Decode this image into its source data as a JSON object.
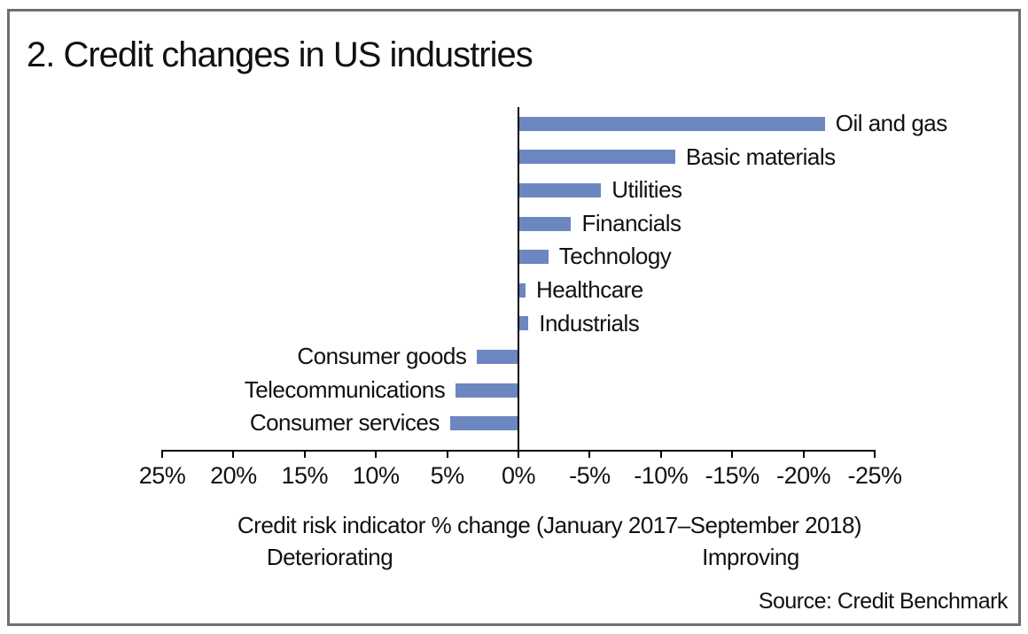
{
  "title": "2. Credit changes in US industries",
  "source": "Source: Credit Benchmark",
  "chart_data": {
    "type": "bar",
    "orientation": "horizontal",
    "title": "2. Credit changes in US industries",
    "categories": [
      "Oil and gas",
      "Basic materials",
      "Utilities",
      "Financials",
      "Technology",
      "Healthcare",
      "Industrials",
      "Consumer goods",
      "Telecommunications",
      "Consumer services"
    ],
    "values": [
      -21.5,
      -11.0,
      -5.8,
      -3.7,
      -2.1,
      -0.5,
      -0.7,
      2.9,
      4.4,
      4.8
    ],
    "xlabel": "Credit risk indicator % change (January 2017–September 2018)",
    "x_ticks": [
      "25%",
      "20%",
      "15%",
      "10%",
      "5%",
      "0%",
      "-5%",
      "-10%",
      "-15%",
      "-20%",
      "-25%"
    ],
    "x_tick_values": [
      25,
      20,
      15,
      10,
      5,
      0,
      -5,
      -10,
      -15,
      -20,
      -25
    ],
    "xlim": [
      25,
      -25
    ],
    "axis_reversed": true,
    "grid": false,
    "legend": "none",
    "bar_color": "#6c86c0",
    "annotations": {
      "left": "Deteriorating",
      "right": "Improving"
    }
  }
}
